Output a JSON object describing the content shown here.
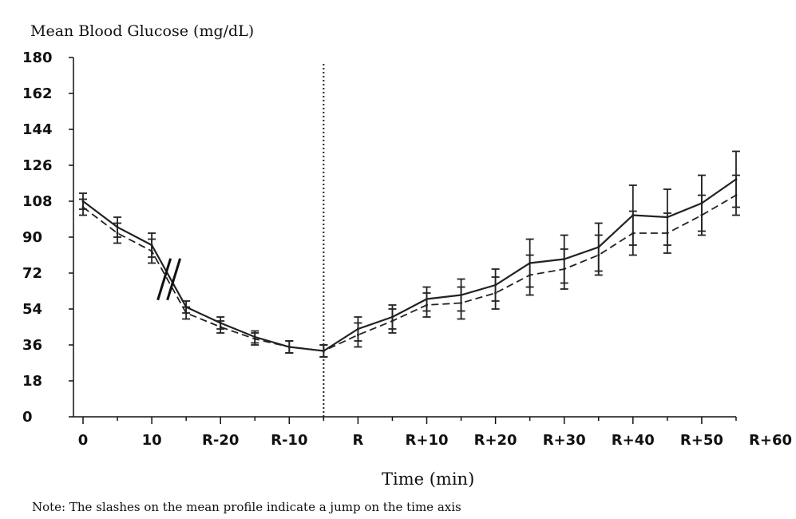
{
  "chart_data": {
    "type": "line",
    "ylabel": "Mean Blood Glucose (mg/dL)",
    "xlabel": "Time (min)",
    "note": "Note: The slashes on the mean profile indicate a jump on the time axis",
    "ylim": [
      0,
      180
    ],
    "yticks": [
      "0",
      "18",
      "36",
      "54",
      "72",
      "90",
      "108",
      "126",
      "144",
      "162",
      "180"
    ],
    "xticks": [
      "0",
      "10",
      "R-20",
      "R-10",
      "R",
      "R+10",
      "R+20",
      "R+30",
      "R+40",
      "R+50",
      "R+60"
    ],
    "x": [
      "0",
      "5",
      "10",
      "R-20",
      "R-15",
      "R-10",
      "R-5",
      "R",
      "R+5",
      "R+10",
      "R+15",
      "R+20",
      "R+25",
      "R+30",
      "R+35",
      "R+40",
      "R+45",
      "R+50",
      "R+55",
      "R+60"
    ],
    "series": [
      {
        "style": "solid",
        "values": [
          108,
          95,
          86,
          55,
          47,
          40,
          35,
          33,
          44,
          50,
          59,
          61,
          66,
          77,
          79,
          85,
          101,
          100,
          107,
          119
        ],
        "error": [
          4,
          5,
          6,
          3,
          3,
          3,
          3,
          3,
          6,
          6,
          6,
          8,
          8,
          12,
          12,
          12,
          15,
          14,
          14,
          14
        ]
      },
      {
        "style": "dashed",
        "values": [
          105,
          92,
          83,
          52,
          45,
          39,
          35,
          33,
          41,
          48,
          56,
          57,
          62,
          71,
          74,
          81,
          92,
          92,
          101,
          111
        ],
        "error": [
          4,
          5,
          6,
          3,
          3,
          3,
          3,
          3,
          6,
          6,
          6,
          8,
          8,
          10,
          10,
          10,
          11,
          10,
          10,
          10
        ]
      }
    ],
    "vertical_line_at": "R",
    "axis_break_between": [
      "10",
      "R-20"
    ],
    "grid": false
  }
}
